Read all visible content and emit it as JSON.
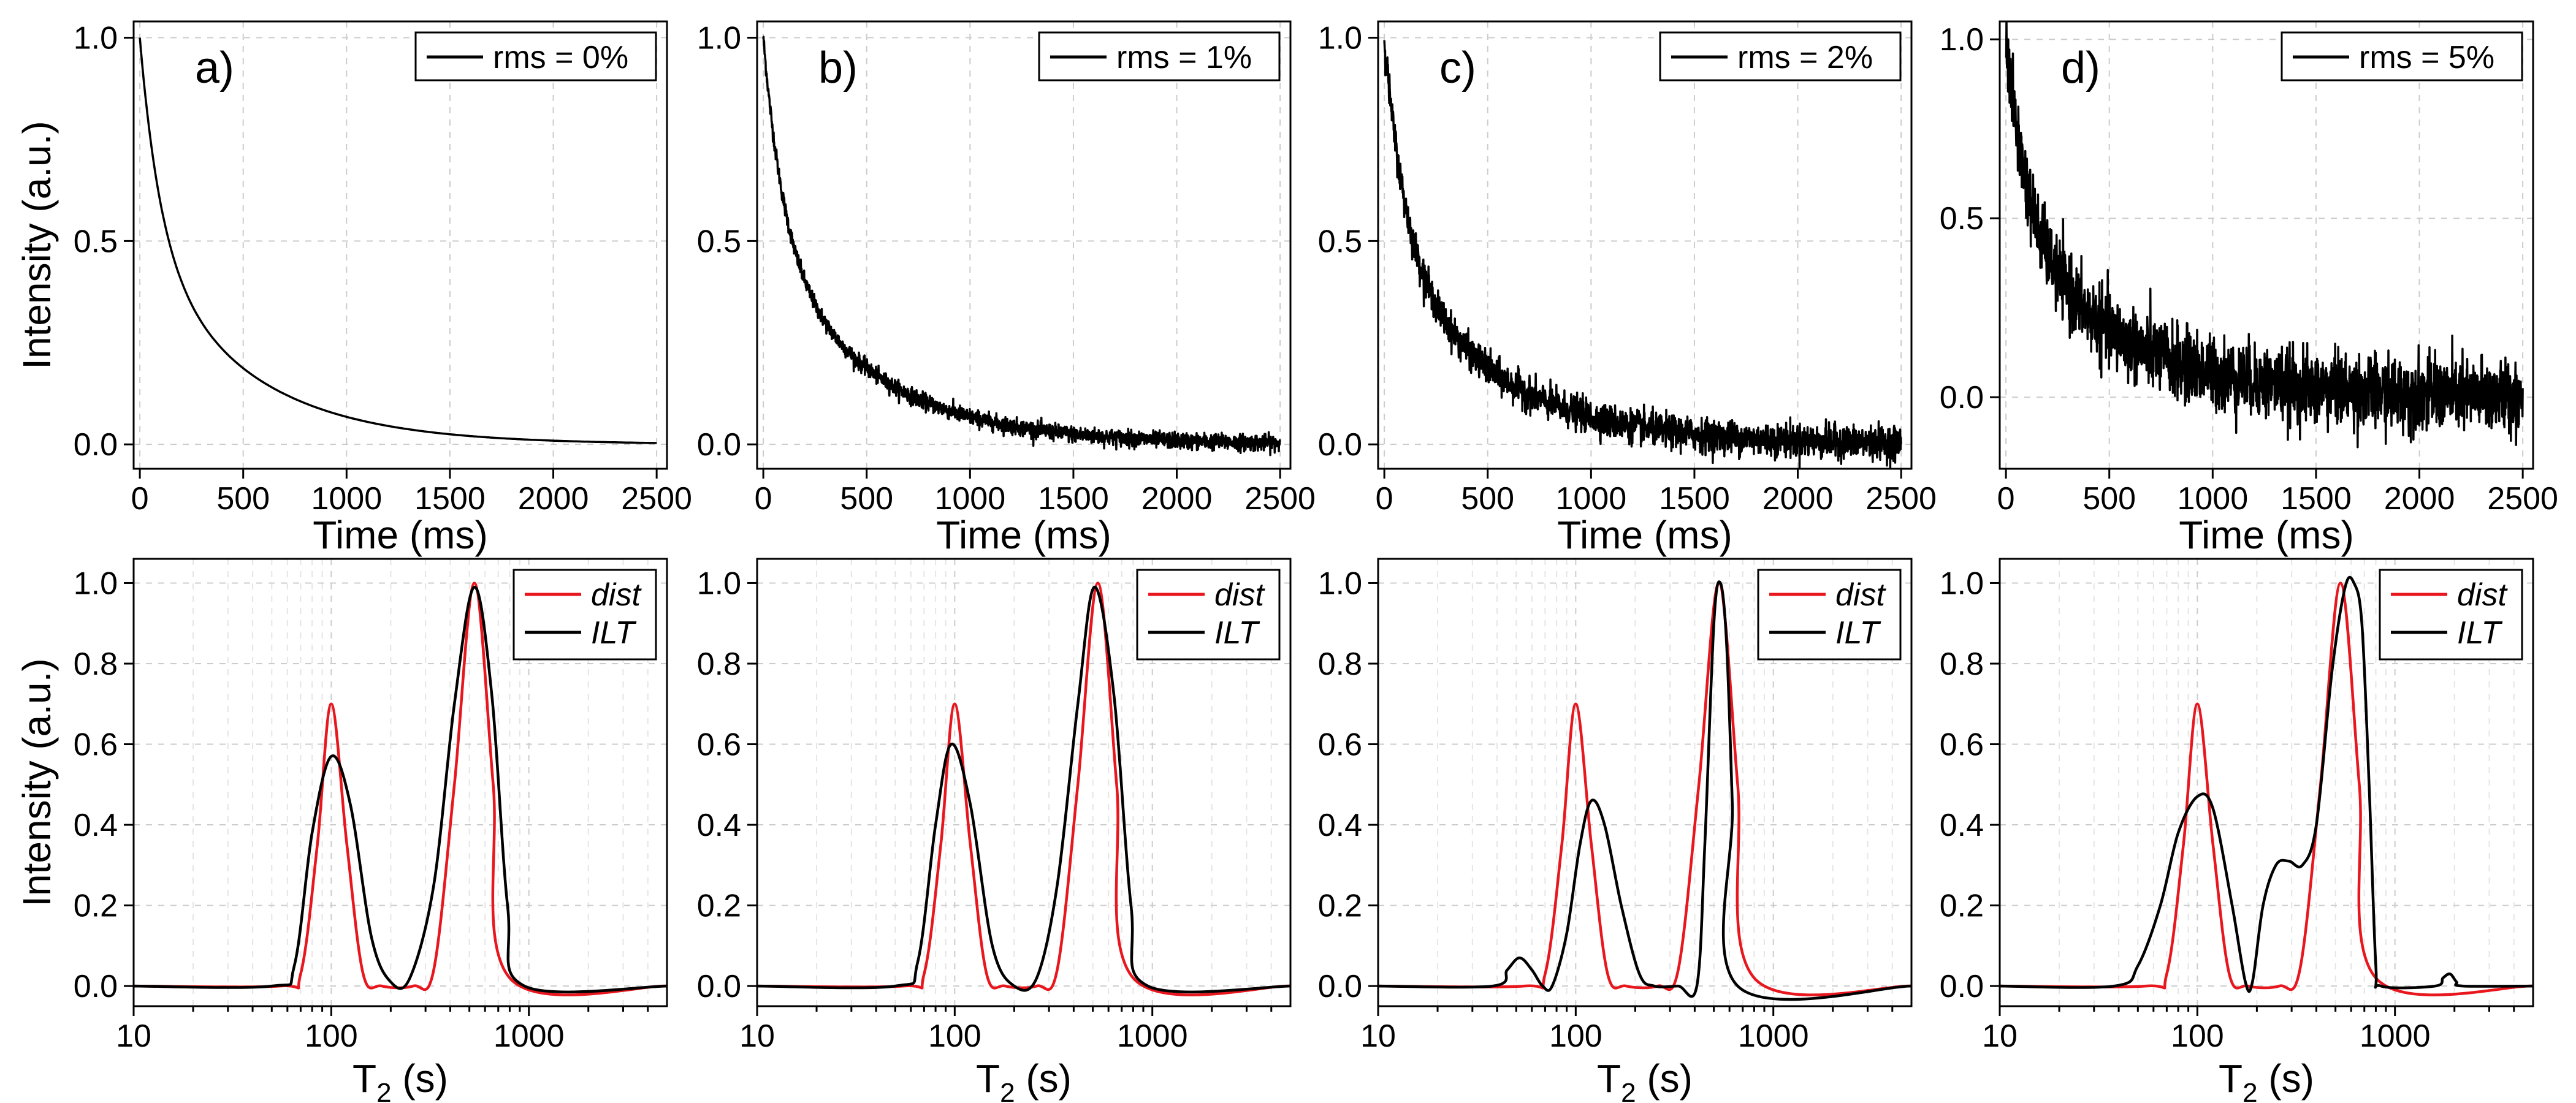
{
  "chart_data": [
    {
      "type": "line",
      "panel": "a)",
      "row": "time",
      "xlabel": "Time (ms)",
      "ylabel": "Intensity (a.u.)",
      "xlim": [
        -30,
        2550
      ],
      "ylim": [
        -0.06,
        1.04
      ],
      "xticks": [
        0,
        500,
        1000,
        1500,
        2000,
        2500
      ],
      "yticks": [
        0.0,
        0.5,
        1.0
      ],
      "ytick_labels": [
        "0.0",
        "0.5",
        "1.0"
      ],
      "grid": true,
      "legend_position": "top-right",
      "series": [
        {
          "name": "rms = 0%",
          "color": "#000000",
          "model": "biexp_decay",
          "noise_rms": 0.0,
          "x": [
            0,
            100,
            200,
            300,
            500,
            750,
            1000,
            1500,
            2000,
            2500
          ],
          "y": [
            1.0,
            0.75,
            0.59,
            0.47,
            0.3,
            0.18,
            0.11,
            0.04,
            0.015,
            0.006
          ]
        }
      ]
    },
    {
      "type": "line",
      "panel": "b)",
      "row": "time",
      "xlabel": "Time (ms)",
      "ylabel": "",
      "xlim": [
        -30,
        2550
      ],
      "ylim": [
        -0.06,
        1.04
      ],
      "xticks": [
        0,
        500,
        1000,
        1500,
        2000,
        2500
      ],
      "yticks": [
        0.0,
        0.5,
        1.0
      ],
      "ytick_labels": [
        "0.0",
        "0.5",
        "1.0"
      ],
      "grid": true,
      "legend_position": "top-right",
      "series": [
        {
          "name": "rms = 1%",
          "color": "#000000",
          "model": "biexp_decay",
          "noise_rms": 0.01,
          "x": [
            0,
            100,
            200,
            300,
            500,
            750,
            1000,
            1500,
            2000,
            2500
          ],
          "y": [
            1.0,
            0.75,
            0.59,
            0.47,
            0.3,
            0.18,
            0.11,
            0.04,
            0.015,
            0.006
          ]
        }
      ]
    },
    {
      "type": "line",
      "panel": "c)",
      "row": "time",
      "xlabel": "Time (ms)",
      "ylabel": "",
      "xlim": [
        -30,
        2550
      ],
      "ylim": [
        -0.06,
        1.04
      ],
      "xticks": [
        0,
        500,
        1000,
        1500,
        2000,
        2500
      ],
      "yticks": [
        0.0,
        0.5,
        1.0
      ],
      "ytick_labels": [
        "0.0",
        "0.5",
        "1.0"
      ],
      "grid": true,
      "legend_position": "top-right",
      "series": [
        {
          "name": "rms = 2%",
          "color": "#000000",
          "model": "biexp_decay",
          "noise_rms": 0.02,
          "x": [
            0,
            100,
            200,
            300,
            500,
            750,
            1000,
            1500,
            2000,
            2500
          ],
          "y": [
            1.0,
            0.75,
            0.59,
            0.47,
            0.3,
            0.18,
            0.11,
            0.04,
            0.015,
            0.006
          ]
        }
      ]
    },
    {
      "type": "line",
      "panel": "d)",
      "row": "time",
      "xlabel": "Time (ms)",
      "ylabel": "",
      "xlim": [
        -30,
        2550
      ],
      "ylim": [
        -0.2,
        1.05
      ],
      "xticks": [
        0,
        500,
        1000,
        1500,
        2000,
        2500
      ],
      "yticks": [
        0.0,
        0.5,
        1.0
      ],
      "ytick_labels": [
        "0.0",
        "0.5",
        "1.0"
      ],
      "grid": true,
      "legend_position": "top-right",
      "series": [
        {
          "name": "rms = 5%",
          "color": "#000000",
          "model": "biexp_decay",
          "noise_rms": 0.05,
          "x": [
            0,
            100,
            200,
            300,
            500,
            750,
            1000,
            1500,
            2000,
            2500
          ],
          "y": [
            1.0,
            0.75,
            0.59,
            0.47,
            0.3,
            0.18,
            0.11,
            0.04,
            0.015,
            0.006
          ]
        }
      ]
    },
    {
      "type": "line",
      "panel": "",
      "row": "t2",
      "xlabel": "T",
      "xlabel_sub": "2",
      "xlabel_unit": " (s)",
      "ylabel": "Intensity (a.u.)",
      "xscale": "log",
      "xlim": [
        10,
        5000
      ],
      "ylim": [
        -0.05,
        1.06
      ],
      "xticks": [
        10,
        100,
        1000
      ],
      "xtick_labels": [
        "10",
        "100",
        "1000"
      ],
      "yticks": [
        0.0,
        0.2,
        0.4,
        0.6,
        0.8,
        1.0
      ],
      "ytick_labels": [
        "0.0",
        "0.2",
        "0.4",
        "0.6",
        "0.8",
        "1.0"
      ],
      "grid": true,
      "legend_position": "top-right",
      "series": [
        {
          "name": "dist",
          "color": "#e8161d",
          "x": [
            10,
            55,
            70,
            85,
            100,
            120,
            145,
            180,
            260,
            330,
            420,
            530,
            660,
            800,
            5000
          ],
          "y": [
            0,
            0,
            0.03,
            0.35,
            0.7,
            0.35,
            0.03,
            0,
            0,
            0.04,
            0.5,
            1.0,
            0.5,
            0.02,
            0
          ]
        },
        {
          "name": "ILT",
          "color": "#000000",
          "x": [
            10,
            50,
            65,
            80,
            100,
            125,
            160,
            200,
            250,
            330,
            420,
            530,
            650,
            780,
            950,
            5000
          ],
          "y": [
            0,
            0,
            0.05,
            0.38,
            0.57,
            0.45,
            0.12,
            0.01,
            0.02,
            0.25,
            0.7,
            0.99,
            0.72,
            0.2,
            0,
            0
          ]
        }
      ]
    },
    {
      "type": "line",
      "panel": "",
      "row": "t2",
      "xlabel": "T",
      "xlabel_sub": "2",
      "xlabel_unit": " (s)",
      "ylabel": "",
      "xscale": "log",
      "xlim": [
        10,
        5000
      ],
      "ylim": [
        -0.05,
        1.06
      ],
      "xticks": [
        10,
        100,
        1000
      ],
      "xtick_labels": [
        "10",
        "100",
        "1000"
      ],
      "yticks": [
        0.0,
        0.2,
        0.4,
        0.6,
        0.8,
        1.0
      ],
      "ytick_labels": [
        "0.0",
        "0.2",
        "0.4",
        "0.6",
        "0.8",
        "1.0"
      ],
      "grid": true,
      "legend_position": "top-right",
      "series": [
        {
          "name": "dist",
          "color": "#e8161d",
          "x": [
            10,
            55,
            70,
            85,
            100,
            120,
            145,
            180,
            260,
            330,
            420,
            530,
            660,
            800,
            5000
          ],
          "y": [
            0,
            0,
            0.03,
            0.35,
            0.7,
            0.35,
            0.03,
            0,
            0,
            0.04,
            0.5,
            1.0,
            0.5,
            0.02,
            0
          ]
        },
        {
          "name": "ILT",
          "color": "#000000",
          "x": [
            10,
            50,
            65,
            80,
            96,
            120,
            155,
            200,
            260,
            330,
            420,
            510,
            640,
            780,
            950,
            5000
          ],
          "y": [
            0,
            0,
            0.06,
            0.4,
            0.6,
            0.45,
            0.1,
            0,
            0.02,
            0.25,
            0.7,
            0.99,
            0.72,
            0.2,
            0,
            0
          ]
        }
      ]
    },
    {
      "type": "line",
      "panel": "",
      "row": "t2",
      "xlabel": "T",
      "xlabel_sub": "2",
      "xlabel_unit": " (s)",
      "ylabel": "",
      "xscale": "log",
      "xlim": [
        10,
        5000
      ],
      "ylim": [
        -0.05,
        1.06
      ],
      "xticks": [
        10,
        100,
        1000
      ],
      "xtick_labels": [
        "10",
        "100",
        "1000"
      ],
      "yticks": [
        0.0,
        0.2,
        0.4,
        0.6,
        0.8,
        1.0
      ],
      "ytick_labels": [
        "0.0",
        "0.2",
        "0.4",
        "0.6",
        "0.8",
        "1.0"
      ],
      "grid": true,
      "legend_position": "top-right",
      "series": [
        {
          "name": "dist",
          "color": "#e8161d",
          "x": [
            10,
            55,
            70,
            85,
            100,
            120,
            145,
            180,
            260,
            330,
            420,
            530,
            660,
            800,
            5000
          ],
          "y": [
            0,
            0,
            0.03,
            0.35,
            0.7,
            0.35,
            0.03,
            0,
            0,
            0.04,
            0.5,
            1.0,
            0.5,
            0.02,
            0
          ]
        },
        {
          "name": "ILT",
          "color": "#000000",
          "x": [
            10,
            38,
            45,
            52,
            60,
            68,
            76,
            90,
            105,
            120,
            140,
            170,
            210,
            250,
            330,
            410,
            450,
            500,
            540,
            580,
            620,
            660,
            5000
          ],
          "y": [
            0,
            0,
            0.04,
            0.07,
            0.04,
            0,
            0,
            0.13,
            0.35,
            0.46,
            0.4,
            0.2,
            0.03,
            0,
            0,
            0,
            0.35,
            0.9,
            1.0,
            0.85,
            0.45,
            0,
            0
          ]
        }
      ]
    },
    {
      "type": "line",
      "panel": "",
      "row": "t2",
      "xlabel": "T",
      "xlabel_sub": "2",
      "xlabel_unit": " (s)",
      "ylabel": "",
      "xscale": "log",
      "xlim": [
        10,
        5000
      ],
      "ylim": [
        -0.05,
        1.06
      ],
      "xticks": [
        10,
        100,
        1000
      ],
      "xtick_labels": [
        "10",
        "100",
        "1000"
      ],
      "yticks": [
        0.0,
        0.2,
        0.4,
        0.6,
        0.8,
        1.0
      ],
      "ytick_labels": [
        "0.0",
        "0.2",
        "0.4",
        "0.6",
        "0.8",
        "1.0"
      ],
      "grid": true,
      "legend_position": "top-right",
      "series": [
        {
          "name": "dist",
          "color": "#e8161d",
          "x": [
            10,
            55,
            70,
            85,
            100,
            120,
            145,
            180,
            260,
            330,
            420,
            530,
            660,
            800,
            5000
          ],
          "y": [
            0,
            0,
            0.03,
            0.35,
            0.7,
            0.35,
            0.03,
            0,
            0,
            0.04,
            0.5,
            1.0,
            0.5,
            0.02,
            0
          ]
        },
        {
          "name": "ILT",
          "color": "#000000",
          "x": [
            10,
            38,
            50,
            65,
            80,
            100,
            120,
            150,
            175,
            190,
            215,
            250,
            290,
            340,
            400,
            480,
            560,
            620,
            680,
            740,
            800,
            850,
            1600,
            1750,
            1900,
            2050,
            2200,
            5000
          ],
          "y": [
            0,
            0,
            0.05,
            0.2,
            0.38,
            0.47,
            0.44,
            0.2,
            0.01,
            0.01,
            0.2,
            0.3,
            0.31,
            0.3,
            0.4,
            0.78,
            0.99,
            1.0,
            0.9,
            0.5,
            0.05,
            0,
            0,
            0.02,
            0.03,
            0.01,
            0,
            0
          ]
        }
      ]
    }
  ]
}
